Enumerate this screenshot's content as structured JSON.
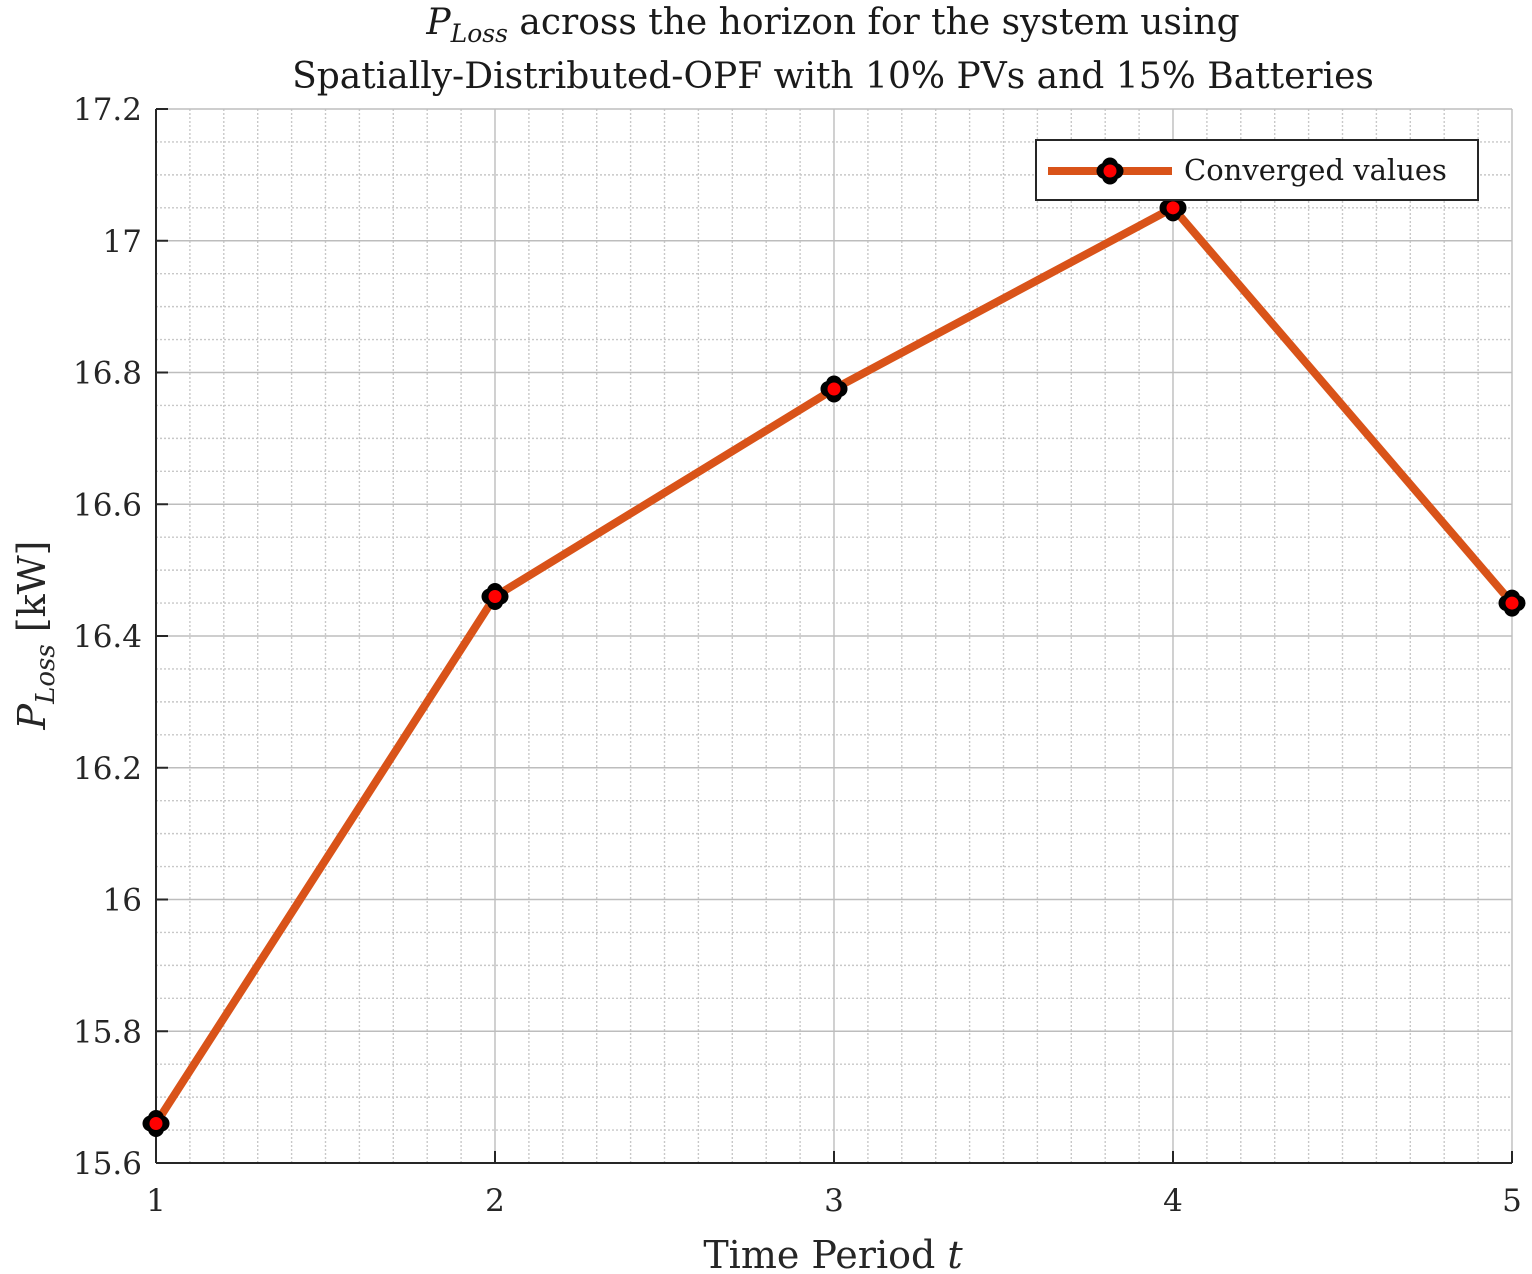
{
  "chart_data": {
    "type": "line",
    "title": {
      "line1_symbol": "P",
      "line1_subscript": "Loss",
      "line1_rest": " across the horizon for the system using",
      "line2": "Spatially-Distributed-OPF with 10% PVs and 15% Batteries"
    },
    "xlabel": {
      "text": "Time Period ",
      "var": "t"
    },
    "ylabel": {
      "symbol": "P",
      "subscript": "Loss",
      "unit": " [kW]"
    },
    "xlim": [
      1,
      5
    ],
    "ylim": [
      15.6,
      17.2
    ],
    "xticks": [
      1,
      2,
      3,
      4,
      5
    ],
    "xtick_labels": [
      "1",
      "2",
      "3",
      "4",
      "5"
    ],
    "yticks": [
      15.6,
      15.8,
      16.0,
      16.2,
      16.4,
      16.6,
      16.8,
      17.0,
      17.2
    ],
    "ytick_labels": [
      "15.6",
      "15.8",
      "16",
      "16.2",
      "16.4",
      "16.6",
      "16.8",
      "17",
      "17.2"
    ],
    "grid": true,
    "minor_grid": true,
    "legend_position": "top-right",
    "series": [
      {
        "name": "Converged values",
        "x": [
          1,
          2,
          3,
          4,
          5
        ],
        "y": [
          15.66,
          16.46,
          16.775,
          17.05,
          16.45
        ],
        "line_color": "#D95319",
        "marker_face_color": "#FF0000",
        "marker_edge_color": "#000000"
      }
    ]
  }
}
